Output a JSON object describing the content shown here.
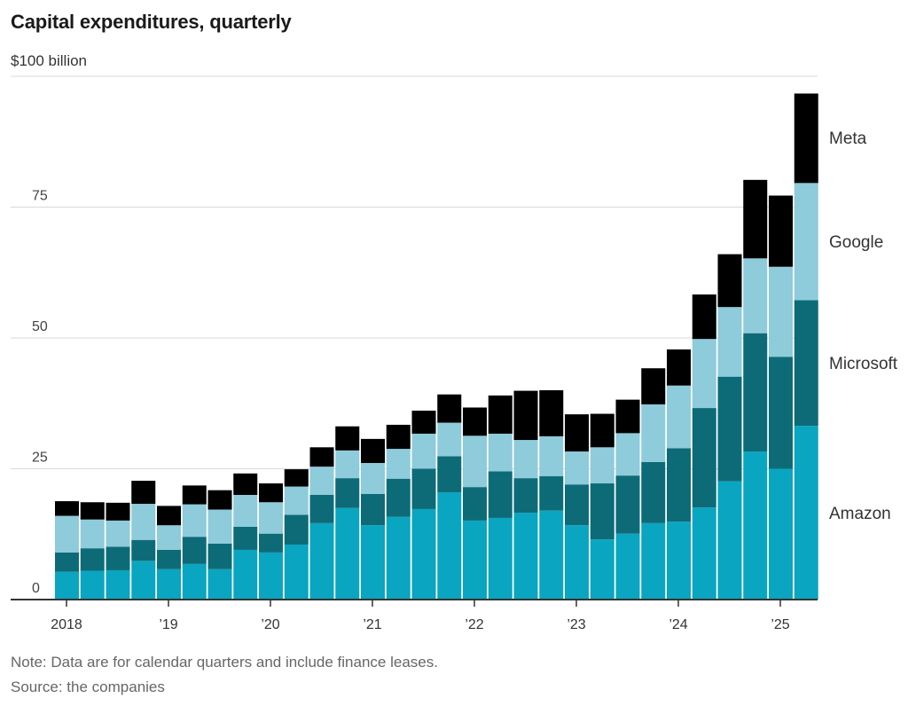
{
  "title": "Capital expenditures, quarterly",
  "unit_label": "$100 billion",
  "note": "Note: Data are for calendar quarters and include finance leases.",
  "source": "Source: the companies",
  "colors": {
    "Amazon": "#0aa5c0",
    "Microsoft": "#0d6b78",
    "Google": "#8ecbdb",
    "Meta": "#000000",
    "grid": "#d9d9d9",
    "axis": "#333333"
  },
  "chart_data": {
    "type": "bar",
    "stacked": true,
    "ylim": [
      0,
      100
    ],
    "yticks": [
      0,
      25,
      50,
      75
    ],
    "ytick_labels": [
      "0",
      "25",
      "50",
      "75"
    ],
    "x_tick_labels": [
      "2018",
      "’19",
      "’20",
      "’21",
      "’22",
      "’23",
      "’24",
      "’25"
    ],
    "categories": [
      "Q1 2018",
      "Q2 2018",
      "Q3 2018",
      "Q4 2018",
      "Q1 2019",
      "Q2 2019",
      "Q3 2019",
      "Q4 2019",
      "Q1 2020",
      "Q2 2020",
      "Q3 2020",
      "Q4 2020",
      "Q1 2021",
      "Q2 2021",
      "Q3 2021",
      "Q4 2021",
      "Q1 2022",
      "Q2 2022",
      "Q3 2022",
      "Q4 2022",
      "Q1 2023",
      "Q2 2023",
      "Q3 2023",
      "Q4 2023",
      "Q1 2024",
      "Q2 2024",
      "Q3 2024",
      "Q4 2024",
      "Q1 2025",
      "Q2 2025"
    ],
    "series": [
      {
        "name": "Amazon",
        "values": [
          5.3,
          5.5,
          5.6,
          7.4,
          5.8,
          6.8,
          5.8,
          9.5,
          9.0,
          10.5,
          14.6,
          17.5,
          14.2,
          15.8,
          17.3,
          20.5,
          15.1,
          15.6,
          16.6,
          17.0,
          14.2,
          11.5,
          12.6,
          14.6,
          14.9,
          17.6,
          22.6,
          28.3,
          25.0,
          33.2
        ]
      },
      {
        "name": "Microsoft",
        "values": [
          3.7,
          4.3,
          4.5,
          4.0,
          3.7,
          5.2,
          4.9,
          4.4,
          3.6,
          5.7,
          5.4,
          5.7,
          6.0,
          7.3,
          7.7,
          6.9,
          6.4,
          8.9,
          6.6,
          6.6,
          7.8,
          10.7,
          11.1,
          11.7,
          14.0,
          19.0,
          20.0,
          22.6,
          21.4,
          24.0
        ]
      },
      {
        "name": "Google",
        "values": [
          7.0,
          5.5,
          5.0,
          6.9,
          4.7,
          6.2,
          6.5,
          6.1,
          6.0,
          5.4,
          5.4,
          5.3,
          5.9,
          5.7,
          6.7,
          6.4,
          9.8,
          7.2,
          7.3,
          7.6,
          6.3,
          6.9,
          8.1,
          11.0,
          12.0,
          13.2,
          13.3,
          14.3,
          17.2,
          22.4
        ]
      },
      {
        "name": "Meta",
        "values": [
          2.8,
          3.3,
          3.4,
          4.4,
          3.7,
          3.6,
          3.7,
          4.1,
          3.6,
          3.3,
          3.7,
          4.6,
          4.6,
          4.6,
          4.4,
          5.4,
          5.4,
          7.3,
          9.4,
          8.8,
          7.1,
          6.4,
          6.4,
          6.9,
          6.9,
          8.5,
          10.1,
          15.0,
          13.6,
          17.1
        ]
      }
    ],
    "legend": [
      "Meta",
      "Google",
      "Microsoft",
      "Amazon"
    ],
    "legend_placement": "right",
    "grid": true
  }
}
